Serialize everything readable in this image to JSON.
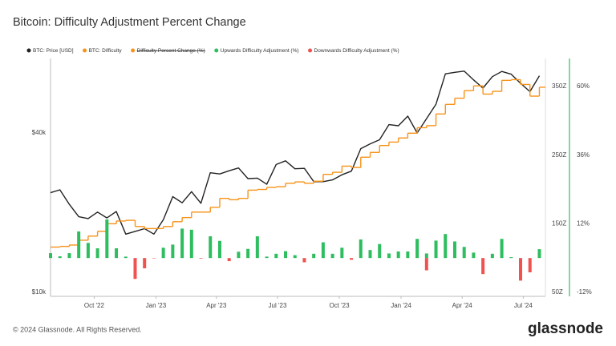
{
  "chart_data": {
    "type": "line",
    "title": "Bitcoin: Difficulty Adjustment Percent Change",
    "x": [
      "2022-07-28",
      "2022-08-11",
      "2022-08-25",
      "2022-09-08",
      "2022-09-22",
      "2022-10-06",
      "2022-10-20",
      "2022-11-03",
      "2022-11-17",
      "2022-12-01",
      "2022-12-15",
      "2022-12-29",
      "2023-01-12",
      "2023-01-26",
      "2023-02-09",
      "2023-02-23",
      "2023-03-09",
      "2023-03-23",
      "2023-04-06",
      "2023-04-20",
      "2023-05-04",
      "2023-05-18",
      "2023-06-01",
      "2023-06-15",
      "2023-06-29",
      "2023-07-13",
      "2023-07-27",
      "2023-08-10",
      "2023-08-24",
      "2023-09-07",
      "2023-09-21",
      "2023-10-05",
      "2023-10-19",
      "2023-11-02",
      "2023-11-16",
      "2023-11-30",
      "2023-12-14",
      "2023-12-28",
      "2024-01-11",
      "2024-01-25",
      "2024-02-08",
      "2024-02-22",
      "2024-03-07",
      "2024-03-21",
      "2024-04-04",
      "2024-04-18",
      "2024-05-02",
      "2024-05-16",
      "2024-05-30",
      "2024-06-13",
      "2024-06-27",
      "2024-07-11",
      "2024-07-25"
    ],
    "xlim": [
      "2022-07-28",
      "2024-08-03"
    ],
    "xticks": [
      {
        "value": "2022-10-01",
        "label": "Oct '22"
      },
      {
        "value": "2023-01-01",
        "label": "Jan '23"
      },
      {
        "value": "2023-04-01",
        "label": "Apr '23"
      },
      {
        "value": "2023-07-01",
        "label": "Jul '23"
      },
      {
        "value": "2023-10-01",
        "label": "Oct '23"
      },
      {
        "value": "2024-01-01",
        "label": "Jan '24"
      },
      {
        "value": "2024-04-01",
        "label": "Apr '24"
      },
      {
        "value": "2024-07-01",
        "label": "Jul '24"
      }
    ],
    "ylim": [
      9660,
      76460
    ],
    "ylog": true,
    "yticks": [
      {
        "value": 10000,
        "label": "$10k"
      },
      {
        "value": 40000,
        "label": "$40k"
      }
    ],
    "y2lim": [
      44.2,
      390.9
    ],
    "y2ticks": [
      {
        "value": 50,
        "label": "50Z"
      },
      {
        "value": 150,
        "label": "150Z"
      },
      {
        "value": 250,
        "label": "250Z"
      },
      {
        "value": 350,
        "label": "350Z"
      }
    ],
    "y3lim": [
      -13.4,
      69.8
    ],
    "y3ticks": [
      {
        "value": -12,
        "label": "-12%"
      },
      {
        "value": 12,
        "label": "12%"
      },
      {
        "value": 36,
        "label": "36%"
      },
      {
        "value": 60,
        "label": "60%"
      }
    ],
    "y3color": "#2ebd5f",
    "series": [
      {
        "name": "BTC: Price [USD]",
        "color": "#222222",
        "axis": "y",
        "kind": "line",
        "values": [
          23800,
          24400,
          21500,
          19300,
          19000,
          20100,
          19100,
          20200,
          16600,
          17000,
          17400,
          16600,
          18800,
          23000,
          21800,
          24000,
          21700,
          28300,
          28000,
          28800,
          29500,
          26900,
          27000,
          25600,
          30400,
          31400,
          29300,
          29400,
          26200,
          26200,
          26600,
          27800,
          28700,
          34900,
          36400,
          37700,
          43000,
          42600,
          46300,
          40000,
          45300,
          51300,
          66900,
          67800,
          68500,
          63500,
          59100,
          65300,
          68300,
          66700,
          61600,
          57300,
          65800
        ]
      },
      {
        "name": "BTC: Difficulty",
        "color": "#f7931a",
        "axis": "y2",
        "kind": "step",
        "values": [
          116,
          117,
          119,
          126,
          132,
          139,
          150,
          154,
          155,
          146,
          143,
          143,
          146,
          153,
          159,
          167,
          167,
          174,
          187,
          185,
          187,
          199,
          200,
          203,
          204,
          209,
          211,
          209,
          212,
          222,
          225,
          234,
          232,
          247,
          254,
          264,
          269,
          275,
          282,
          290,
          293,
          310,
          324,
          333,
          344,
          351,
          339,
          343,
          359,
          360,
          353,
          336,
          349
        ]
      },
      {
        "name": "Difficulty Percent Change (%)",
        "color": "#f7931a",
        "hidden": true
      },
      {
        "name": "Upwards Difficulty Adjustment (%)",
        "color": "#2ebd5f",
        "axis": "y3",
        "kind": "bar",
        "values": [
          1.7,
          0.6,
          1.7,
          9.3,
          5.3,
          3.4,
          13.5,
          3.4,
          0.5,
          null,
          null,
          null,
          3.6,
          4.7,
          10.3,
          9.9,
          null,
          7.6,
          6.0,
          null,
          2.2,
          3.2,
          7.6,
          0.5,
          1.5,
          2.4,
          1.0,
          null,
          1.5,
          5.5,
          1.5,
          3.6,
          null,
          6.5,
          2.8,
          4.9,
          1.6,
          2.3,
          2.3,
          6.7,
          1.6,
          6.1,
          8.4,
          5.8,
          3.9,
          1.9,
          null,
          1.5,
          6.7,
          0.3,
          null,
          null,
          3.1
        ]
      },
      {
        "name": "Downwards Difficulty Adjustment (%)",
        "color": "#f0524f",
        "axis": "y3",
        "kind": "bar",
        "values": [
          null,
          null,
          null,
          null,
          null,
          null,
          null,
          null,
          null,
          -7.3,
          -3.6,
          -0.1,
          null,
          null,
          null,
          null,
          -0.2,
          null,
          null,
          -1.1,
          null,
          null,
          null,
          null,
          null,
          null,
          null,
          -1.5,
          null,
          null,
          null,
          null,
          -0.6,
          null,
          null,
          null,
          null,
          null,
          null,
          null,
          -4.3,
          null,
          null,
          null,
          null,
          null,
          -5.6,
          null,
          null,
          null,
          -7.9,
          -5.0,
          null
        ]
      }
    ]
  },
  "footer": {
    "copyright": "© 2024 Glassnode. All Rights Reserved.",
    "logo": "glassnode"
  }
}
